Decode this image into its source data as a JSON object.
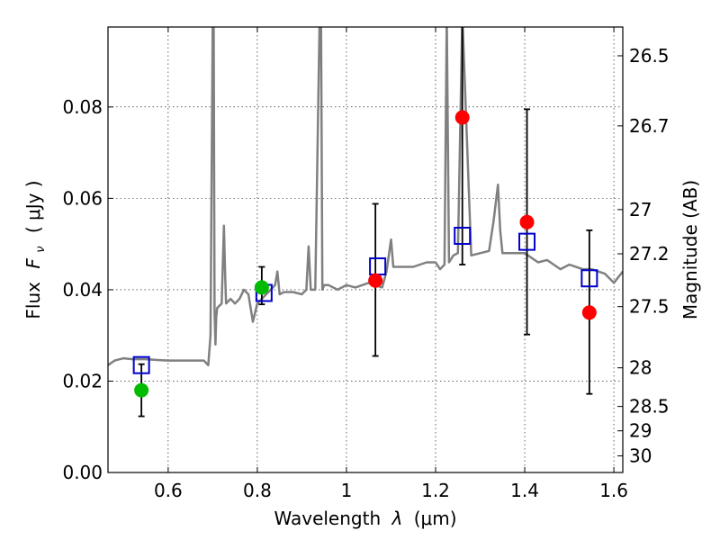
{
  "chart_data": {
    "type": "scatter",
    "xlabel_prefix": "Wavelength",
    "xlabel_symbol": "λ",
    "xlabel_unit": "(μm)",
    "ylabel_prefix": "Flux",
    "ylabel_symbol": "F",
    "ylabel_subscript": "ν",
    "ylabel_unit": "( μJy )",
    "y2label": "Magnitude (AB)",
    "xlim": [
      0.465,
      1.62
    ],
    "ylim": [
      0.0,
      0.0975
    ],
    "xticks": [
      0.6,
      0.8,
      1.0,
      1.2,
      1.4,
      1.6
    ],
    "xtick_labels": [
      "0.6",
      "0.8",
      "1",
      "1.2",
      "1.4",
      "1.6"
    ],
    "yticks": [
      0.0,
      0.02,
      0.04,
      0.06,
      0.08
    ],
    "ytick_labels": [
      "0.00",
      "0.02",
      "0.04",
      "0.06",
      "0.08"
    ],
    "y2ticks": [
      26.5,
      26.7,
      27,
      27.2,
      27.5,
      28,
      28.5,
      29,
      30
    ],
    "y2tick_labels": [
      "26.5",
      "26.7",
      "27",
      "27.2",
      "27.5",
      "28",
      "28.5",
      "29",
      "30"
    ],
    "grid": true,
    "colors": {
      "sed": "#808080",
      "green": "#00bb00",
      "red": "#ff0000",
      "model": "#0000cc",
      "errorbar": "#000000"
    },
    "sed_model": {
      "name": "Best-fit SED",
      "x": [
        0.465,
        0.48,
        0.5,
        0.52,
        0.55,
        0.58,
        0.6,
        0.63,
        0.65,
        0.68,
        0.69,
        0.695,
        0.7,
        0.702,
        0.704,
        0.706,
        0.707,
        0.708,
        0.71,
        0.72,
        0.725,
        0.728,
        0.73,
        0.74,
        0.75,
        0.76,
        0.77,
        0.78,
        0.79,
        0.8,
        0.81,
        0.82,
        0.83,
        0.84,
        0.845,
        0.85,
        0.86,
        0.88,
        0.9,
        0.91,
        0.915,
        0.92,
        0.93,
        0.94,
        0.943,
        0.946,
        0.95,
        0.96,
        0.98,
        1.0,
        1.02,
        1.05,
        1.08,
        1.09,
        1.1,
        1.105,
        1.11,
        1.12,
        1.15,
        1.18,
        1.2,
        1.21,
        1.22,
        1.225,
        1.23,
        1.24,
        1.25,
        1.26,
        1.28,
        1.3,
        1.32,
        1.33,
        1.34,
        1.345,
        1.35,
        1.36,
        1.38,
        1.4,
        1.43,
        1.45,
        1.48,
        1.5,
        1.53,
        1.55,
        1.58,
        1.6,
        1.62
      ],
      "y": [
        0.0235,
        0.0245,
        0.025,
        0.0248,
        0.0248,
        0.0246,
        0.0245,
        0.0245,
        0.0245,
        0.0245,
        0.0235,
        0.03,
        0.1,
        0.1,
        0.035,
        0.028,
        0.031,
        0.034,
        0.036,
        0.037,
        0.054,
        0.043,
        0.037,
        0.038,
        0.037,
        0.038,
        0.04,
        0.039,
        0.033,
        0.037,
        0.038,
        0.039,
        0.04,
        0.041,
        0.044,
        0.039,
        0.0395,
        0.0395,
        0.039,
        0.04,
        0.0495,
        0.04,
        0.04,
        0.1,
        0.1,
        0.04,
        0.041,
        0.041,
        0.04,
        0.041,
        0.0405,
        0.0415,
        0.0405,
        0.044,
        0.051,
        0.045,
        0.045,
        0.045,
        0.045,
        0.046,
        0.046,
        0.0445,
        0.0455,
        0.1,
        0.046,
        0.0475,
        0.048,
        0.1,
        0.0475,
        0.048,
        0.0485,
        0.055,
        0.063,
        0.053,
        0.048,
        0.048,
        0.048,
        0.048,
        0.046,
        0.0465,
        0.0445,
        0.0455,
        0.0445,
        0.0445,
        0.0435,
        0.0415,
        0.044
      ]
    },
    "series": [
      {
        "name": "Green photometry",
        "color_key": "green",
        "x": [
          0.54,
          0.81
        ],
        "y": [
          0.018,
          0.0405
        ],
        "yerr_low": [
          0.0123,
          0.0368
        ],
        "yerr_high": [
          0.0237,
          0.045
        ]
      },
      {
        "name": "Red photometry",
        "color_key": "red",
        "x": [
          1.065,
          1.26,
          1.405,
          1.545
        ],
        "y": [
          0.042,
          0.0777,
          0.0548,
          0.035
        ],
        "yerr_low": [
          0.0255,
          0.0455,
          0.0302,
          0.0172
        ],
        "yerr_high": [
          0.0588,
          0.1,
          0.0795,
          0.053
        ]
      },
      {
        "name": "Model photometry",
        "color_key": "model",
        "x": [
          0.54,
          0.815,
          1.07,
          1.26,
          1.405,
          1.545
        ],
        "y": [
          0.0235,
          0.0393,
          0.0451,
          0.0518,
          0.0505,
          0.0425
        ]
      }
    ]
  }
}
